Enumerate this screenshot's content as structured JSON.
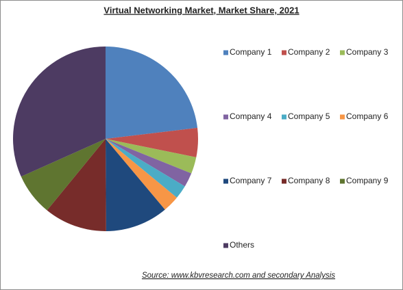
{
  "chart_data": {
    "type": "pie",
    "title": "Virtual Networking Market, Market Share, 2021",
    "source": "Source:  www.kbvresearch.com  and secondary Analysis",
    "categories": [
      "Company 1",
      "Company 2",
      "Company 3",
      "Company 4",
      "Company 5",
      "Company 6",
      "Company 7",
      "Company 8",
      "Company 9",
      "Others"
    ],
    "values": [
      23.1,
      5.1,
      2.9,
      2.5,
      2.4,
      2.9,
      11,
      11,
      7.4,
      31.7
    ],
    "colors": [
      "#4f81bd",
      "#c0504d",
      "#9bbb59",
      "#8064a2",
      "#4bacc6",
      "#f79646",
      "#1f497d",
      "#772c2a",
      "#5f7530",
      "#4d3b62"
    ],
    "legend": "right"
  }
}
